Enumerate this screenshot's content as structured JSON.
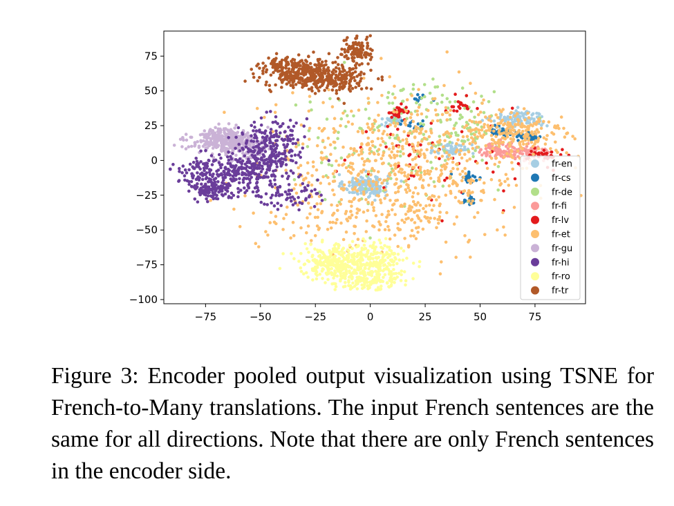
{
  "caption": {
    "label": "Figure 3:",
    "text": "Encoder pooled output visualization using TSNE for French-to-Many translations.  The input French sentences are the same for all directions. Note that there are only French sentences in the encoder side."
  },
  "chart_data": {
    "type": "scatter",
    "title": "",
    "xlabel": "",
    "ylabel": "",
    "xlim": [
      -94,
      98
    ],
    "ylim": [
      -103,
      93
    ],
    "xticks": [
      -75,
      -50,
      -25,
      0,
      25,
      50,
      75
    ],
    "yticks": [
      75,
      50,
      25,
      0,
      -25,
      -50,
      -75,
      -100
    ],
    "xtick_labels": [
      "−75",
      "−50",
      "−25",
      "0",
      "25",
      "50",
      "75"
    ],
    "ytick_labels": [
      "75",
      "50",
      "25",
      "0",
      "−25",
      "−50",
      "−75",
      "−100"
    ],
    "grid": false,
    "legend_position": "lower-right",
    "series": [
      {
        "name": "fr-en",
        "color": "#a6cee3",
        "clusters": [
          [
            -2,
            -18,
            5,
            4,
            160
          ],
          [
            68,
            30,
            6,
            3,
            110
          ],
          [
            38,
            8,
            4,
            3,
            60
          ],
          [
            10,
            28,
            3,
            2,
            30
          ]
        ]
      },
      {
        "name": "fr-cs",
        "color": "#1f78b4",
        "clusters": [
          [
            60,
            21,
            3,
            1.5,
            40
          ],
          [
            72,
            17,
            3,
            1.5,
            40
          ],
          [
            45,
            -12,
            3,
            2,
            25
          ],
          [
            45,
            -28,
            2,
            2,
            15
          ],
          [
            20,
            25,
            3,
            2,
            15
          ],
          [
            23,
            45,
            2,
            2,
            10
          ]
        ]
      },
      {
        "name": "fr-de",
        "color": "#b2df8a",
        "clusters": [
          [
            5,
            10,
            25,
            20,
            120
          ],
          [
            40,
            22,
            10,
            8,
            60
          ],
          [
            30,
            45,
            12,
            6,
            40
          ]
        ]
      },
      {
        "name": "fr-fi",
        "color": "#fb9a99",
        "clusters": [
          [
            60,
            7,
            5,
            3,
            90
          ],
          [
            73,
            5,
            5,
            3,
            60
          ]
        ]
      },
      {
        "name": "fr-lv",
        "color": "#e31a1c",
        "clusters": [
          [
            13,
            35,
            3,
            2,
            30
          ],
          [
            80,
            4,
            4,
            2,
            35
          ],
          [
            40,
            38,
            3,
            2,
            15
          ],
          [
            25,
            5,
            20,
            18,
            60
          ]
        ]
      },
      {
        "name": "fr-et",
        "color": "#fdbf6f",
        "clusters": [
          [
            15,
            -5,
            30,
            25,
            700
          ],
          [
            65,
            20,
            12,
            8,
            180
          ],
          [
            -5,
            -42,
            25,
            10,
            100
          ]
        ]
      },
      {
        "name": "fr-gu",
        "color": "#cab2d6",
        "clusters": [
          [
            -68,
            15,
            7,
            4,
            240
          ],
          [
            -58,
            10,
            6,
            5,
            160
          ]
        ]
      },
      {
        "name": "fr-hi",
        "color": "#6a3d9a",
        "clusters": [
          [
            -72,
            -20,
            5,
            4,
            120
          ],
          [
            -58,
            -7,
            10,
            7,
            260
          ],
          [
            -45,
            12,
            7,
            9,
            200
          ],
          [
            -80,
            -8,
            4,
            5,
            50
          ],
          [
            -40,
            -25,
            8,
            5,
            70
          ]
        ]
      },
      {
        "name": "fr-ro",
        "color": "#ffff99",
        "clusters": [
          [
            -6,
            -72,
            12,
            6,
            400
          ],
          [
            -2,
            -85,
            8,
            4,
            150
          ],
          [
            -20,
            -75,
            5,
            4,
            60
          ]
        ]
      },
      {
        "name": "fr-tr",
        "color": "#b15928",
        "clusters": [
          [
            -30,
            63,
            10,
            5,
            300
          ],
          [
            -15,
            58,
            8,
            5,
            150
          ],
          [
            -6,
            79,
            4,
            4,
            100
          ],
          [
            -40,
            68,
            5,
            3,
            50
          ]
        ]
      }
    ]
  }
}
